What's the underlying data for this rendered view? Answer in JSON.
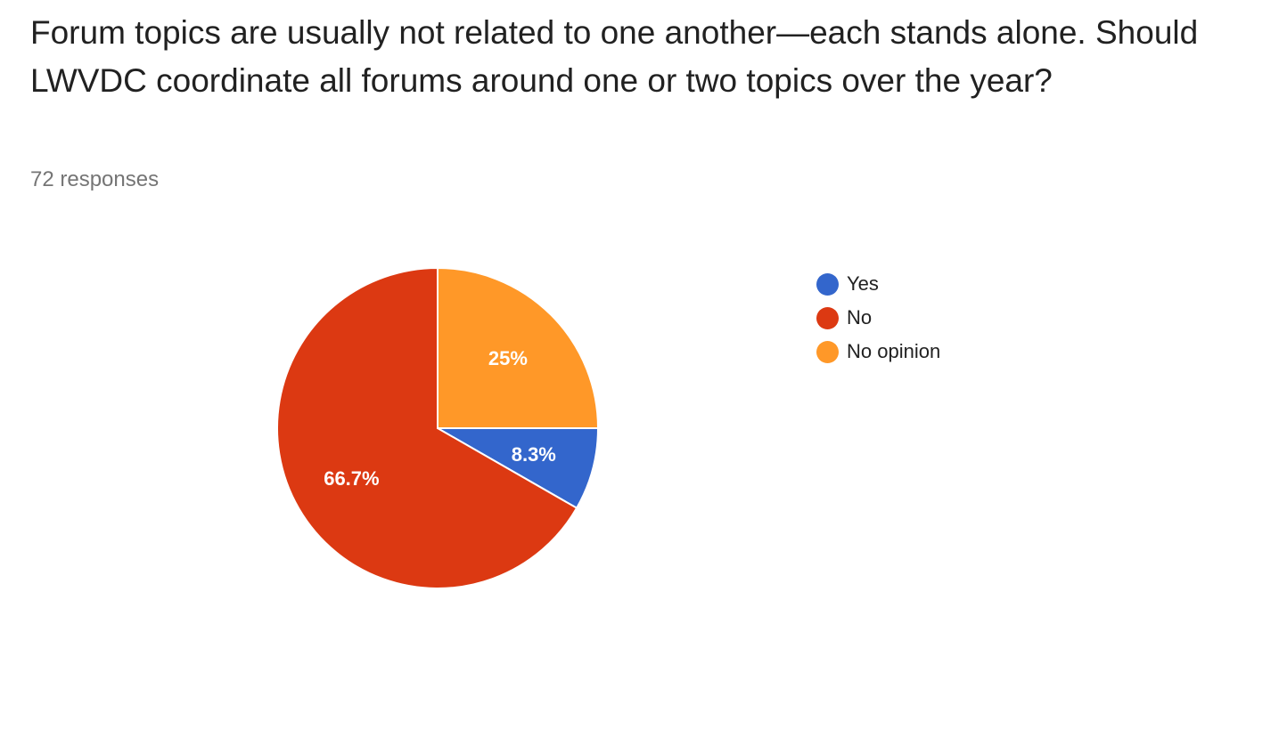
{
  "header": {
    "title": "Forum topics are usually not related to one another—each stands alone. Should LWVDC coordinate all forums around one or two topics over the year?",
    "responses": "72 responses"
  },
  "chart_data": {
    "type": "pie",
    "title": "Forum topics are usually not related to one another—each stands alone. Should LWVDC coordinate all forums around one or two topics over the year?",
    "legend_position": "right",
    "slices": [
      {
        "name": "Yes",
        "value": 8.3,
        "label": "8.3%",
        "color": "#3366cc"
      },
      {
        "name": "No",
        "value": 66.7,
        "label": "66.7%",
        "color": "#dc3912"
      },
      {
        "name": "No opinion",
        "value": 25,
        "label": "25%",
        "color": "#ff9828"
      }
    ]
  }
}
